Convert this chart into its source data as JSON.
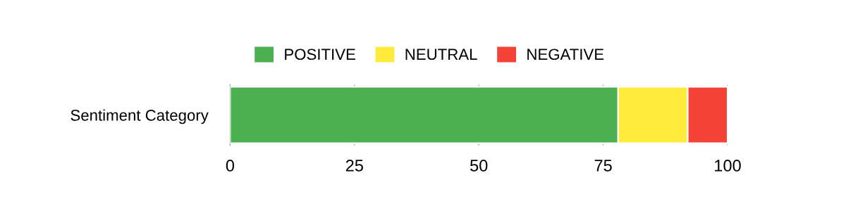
{
  "chart_data": {
    "type": "bar",
    "orientation": "horizontal",
    "stacked": true,
    "categories": [
      "Sentiment Category"
    ],
    "series": [
      {
        "name": "POSITIVE",
        "color": "#4caf50",
        "values": [
          78
        ]
      },
      {
        "name": "NEUTRAL",
        "color": "#ffeb3b",
        "values": [
          14
        ]
      },
      {
        "name": "NEGATIVE",
        "color": "#f44336",
        "values": [
          8
        ]
      }
    ],
    "xlim": [
      0,
      100
    ],
    "xticks": [
      0,
      25,
      50,
      75,
      100
    ],
    "grid": "x",
    "legend": "top"
  }
}
